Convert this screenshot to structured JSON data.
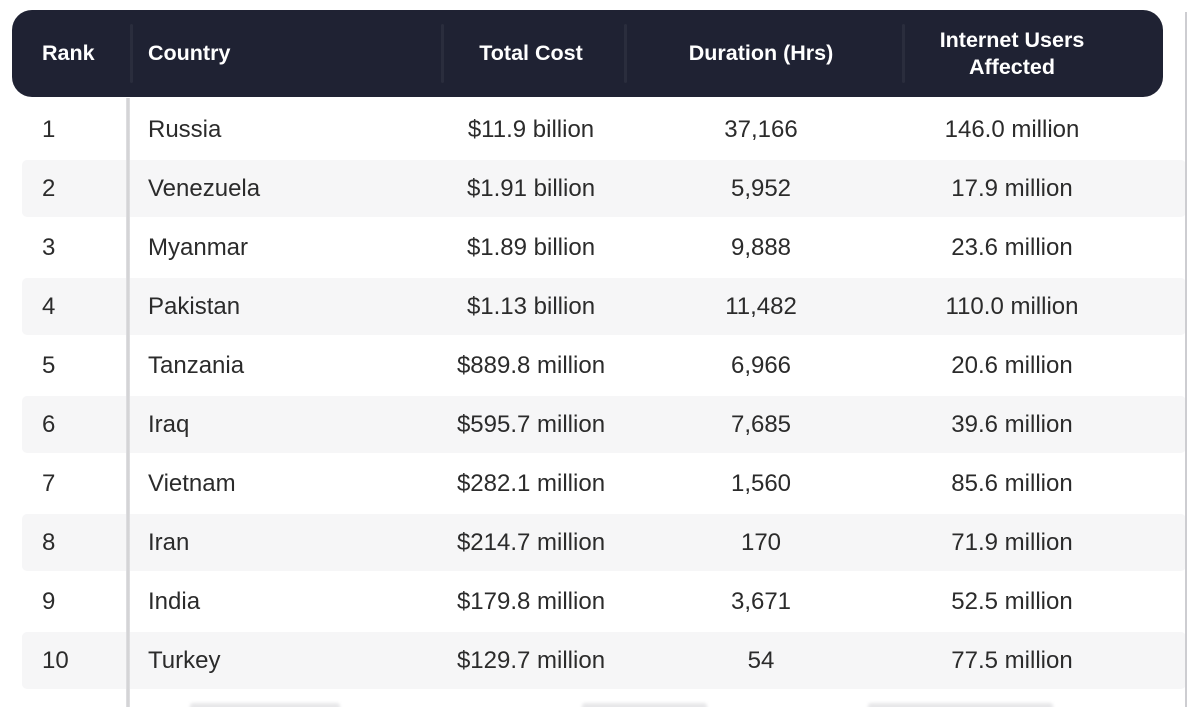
{
  "title": "Internet shutdowns ranking table",
  "chart_data": {
    "type": "table",
    "columns": [
      "Rank",
      "Country",
      "Total Cost",
      "Duration (Hrs)",
      "Internet Users Affected"
    ],
    "rows": [
      [
        "1",
        "Russia",
        "$11.9 billion",
        "37,166",
        "146.0 million"
      ],
      [
        "2",
        "Venezuela",
        "$1.91 billion",
        "5,952",
        "17.9 million"
      ],
      [
        "3",
        "Myanmar",
        "$1.89 billion",
        "9,888",
        "23.6 million"
      ],
      [
        "4",
        "Pakistan",
        "$1.13 billion",
        "11,482",
        "110.0 million"
      ],
      [
        "5",
        "Tanzania",
        "$889.8 million",
        "6,966",
        "20.6 million"
      ],
      [
        "6",
        "Iraq",
        "$595.7 million",
        "7,685",
        "39.6 million"
      ],
      [
        "7",
        "Vietnam",
        "$282.1 million",
        "1,560",
        "85.6 million"
      ],
      [
        "8",
        "Iran",
        "$214.7 million",
        "170",
        "71.9 million"
      ],
      [
        "9",
        "India",
        "$179.8 million",
        "3,671",
        "52.5 million"
      ],
      [
        "10",
        "Turkey",
        "$129.7 million",
        "54",
        "77.5 million"
      ]
    ],
    "layout": {
      "column_align": [
        "left",
        "left",
        "center",
        "center",
        "center"
      ],
      "zebra_striping": "even ranks shaded",
      "header_style": "dark rounded bar"
    }
  },
  "colors": {
    "header_bg": "#1F2233",
    "header_text": "#FFFFFF",
    "body_text": "#2B2B2B",
    "row_stripe": "#F6F6F7",
    "divider": "#D6D6D8",
    "edge_line": "#CDCDD1"
  }
}
